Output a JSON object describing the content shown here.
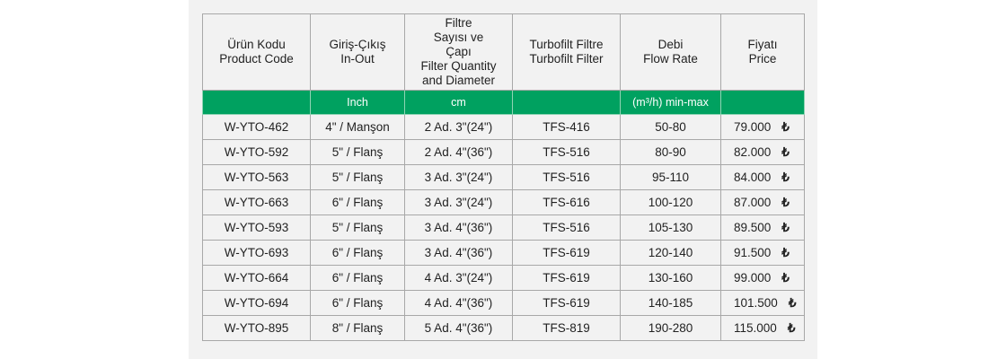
{
  "headers": [
    {
      "tr": "Ürün Kodu",
      "en": "Product Code"
    },
    {
      "tr": "Giriş-Çıkış",
      "en": "In-Out"
    },
    {
      "tr": "Filtre Sayısı ve Çapı",
      "en": "Filter Quantity and Diameter"
    },
    {
      "tr": "Turbofilt Filtre",
      "en": "Turbofilt Filter"
    },
    {
      "tr": "Debi",
      "en": "Flow Rate"
    },
    {
      "tr": "Fiyatı",
      "en": "Price"
    }
  ],
  "units": [
    "",
    "Inch",
    "cm",
    "",
    "(m³/h) min-max",
    ""
  ],
  "currency_symbol": "₺",
  "colors": {
    "accent": "#00a160",
    "panel": "#f2f2f2"
  },
  "rows": [
    [
      "W-YTO-462",
      "4\" / Manşon",
      "2 Ad. 3\"(24\")",
      "TFS-416",
      "50-80",
      "79.000"
    ],
    [
      "W-YTO-592",
      "5\" / Flanş",
      "2 Ad. 4\"(36\")",
      "TFS-516",
      "80-90",
      "82.000"
    ],
    [
      "W-YTO-563",
      "5\" / Flanş",
      "3 Ad. 3\"(24\")",
      "TFS-516",
      "95-110",
      "84.000"
    ],
    [
      "W-YTO-663",
      "6\" / Flanş",
      "3 Ad. 3\"(24\")",
      "TFS-616",
      "100-120",
      "87.000"
    ],
    [
      "W-YTO-593",
      "5\" / Flanş",
      "3 Ad. 4\"(36\")",
      "TFS-516",
      "105-130",
      "89.500"
    ],
    [
      "W-YTO-693",
      "6\" / Flanş",
      "3 Ad. 4\"(36\")",
      "TFS-619",
      "120-140",
      "91.500"
    ],
    [
      "W-YTO-664",
      "6\" / Flanş",
      "4 Ad. 3\"(24\")",
      "TFS-619",
      "130-160",
      "99.000"
    ],
    [
      "W-YTO-694",
      "6\" / Flanş",
      "4 Ad. 4\"(36\")",
      "TFS-619",
      "140-185",
      "101.500"
    ],
    [
      "W-YTO-895",
      "8\" / Flanş",
      "5 Ad. 4\"(36\")",
      "TFS-819",
      "190-280",
      "115.000"
    ]
  ]
}
